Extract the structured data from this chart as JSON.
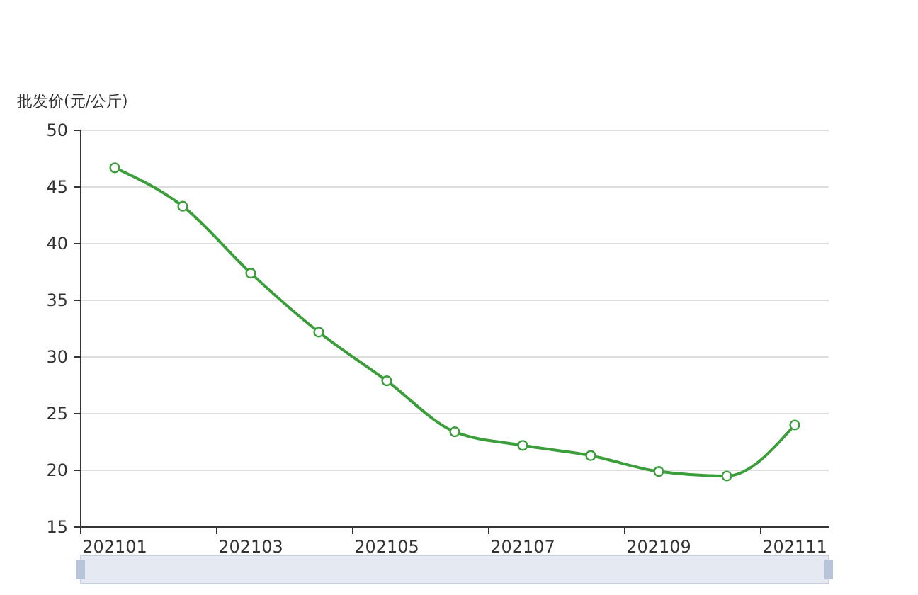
{
  "chart_data": {
    "type": "line",
    "ylabel": "批发价(元/公斤)",
    "categories": [
      "202101",
      null,
      "202103",
      null,
      "202105",
      null,
      "202107",
      null,
      "202109",
      null,
      "202111"
    ],
    "series": [
      {
        "color": "#3a9e3a",
        "values": [
          46.7,
          43.3,
          37.4,
          32.2,
          27.9,
          23.4,
          22.2,
          21.3,
          19.9,
          19.5,
          24.0
        ]
      }
    ],
    "ylim": [
      15,
      50
    ],
    "yticks": [
      15,
      20,
      25,
      30,
      35,
      40,
      45,
      50
    ],
    "grid": "y",
    "marker": "circle",
    "line_style": "solid"
  }
}
